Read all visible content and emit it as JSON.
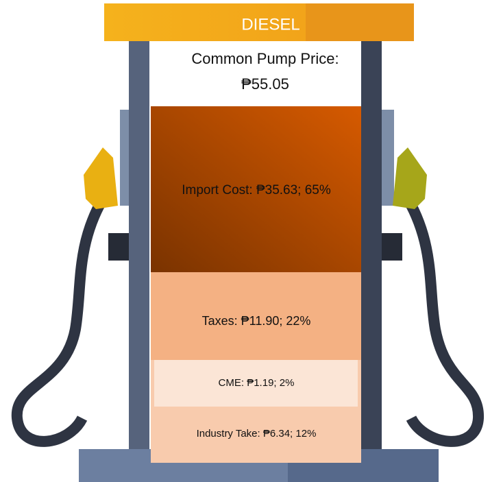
{
  "header": {
    "title": "DIESEL",
    "subtitle": "Common Pump Price:",
    "price": "₱55.05"
  },
  "segments": [
    {
      "label": "Import Cost: ₱35.63; 65%"
    },
    {
      "label": "Taxes: ₱11.90; 22%"
    },
    {
      "label": "CME: ₱1.19; 2%"
    },
    {
      "label": "Industry Take: ₱6.34; 12%"
    }
  ]
}
